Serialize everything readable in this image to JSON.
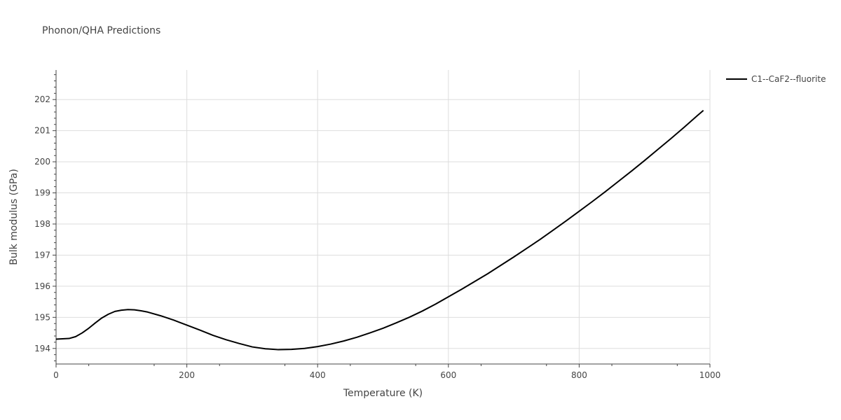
{
  "chart_data": {
    "type": "line",
    "title": "Phonon/QHA Predictions",
    "xlabel": "Temperature (K)",
    "ylabel": "Bulk modulus (GPa)",
    "xlim": [
      0,
      1000
    ],
    "ylim": [
      193.5,
      202.95
    ],
    "x_ticks": [
      0,
      200,
      400,
      600,
      800,
      1000
    ],
    "y_ticks": [
      194,
      195,
      196,
      197,
      198,
      199,
      200,
      201,
      202
    ],
    "grid": true,
    "legend_position": "top-right outside",
    "series": [
      {
        "name": "C1--CaF2--fluorite",
        "color": "#000000",
        "x": [
          0,
          10,
          20,
          30,
          40,
          50,
          60,
          70,
          80,
          90,
          100,
          110,
          120,
          130,
          140,
          160,
          180,
          200,
          220,
          240,
          260,
          280,
          300,
          320,
          340,
          360,
          380,
          400,
          420,
          440,
          460,
          480,
          500,
          520,
          540,
          560,
          580,
          600,
          620,
          640,
          660,
          680,
          700,
          720,
          740,
          760,
          780,
          800,
          820,
          840,
          860,
          880,
          900,
          920,
          940,
          960,
          980,
          990
        ],
        "y": [
          194.3,
          194.31,
          194.32,
          194.38,
          194.5,
          194.65,
          194.82,
          194.98,
          195.1,
          195.19,
          195.23,
          195.25,
          195.24,
          195.21,
          195.17,
          195.05,
          194.91,
          194.75,
          194.59,
          194.42,
          194.28,
          194.16,
          194.05,
          193.99,
          193.96,
          193.97,
          194.0,
          194.06,
          194.14,
          194.24,
          194.36,
          194.5,
          194.65,
          194.82,
          195.0,
          195.2,
          195.42,
          195.66,
          195.9,
          196.15,
          196.4,
          196.67,
          196.94,
          197.22,
          197.5,
          197.8,
          198.1,
          198.41,
          198.72,
          199.04,
          199.37,
          199.7,
          200.04,
          200.39,
          200.74,
          201.1,
          201.47,
          201.65
        ]
      }
    ]
  }
}
